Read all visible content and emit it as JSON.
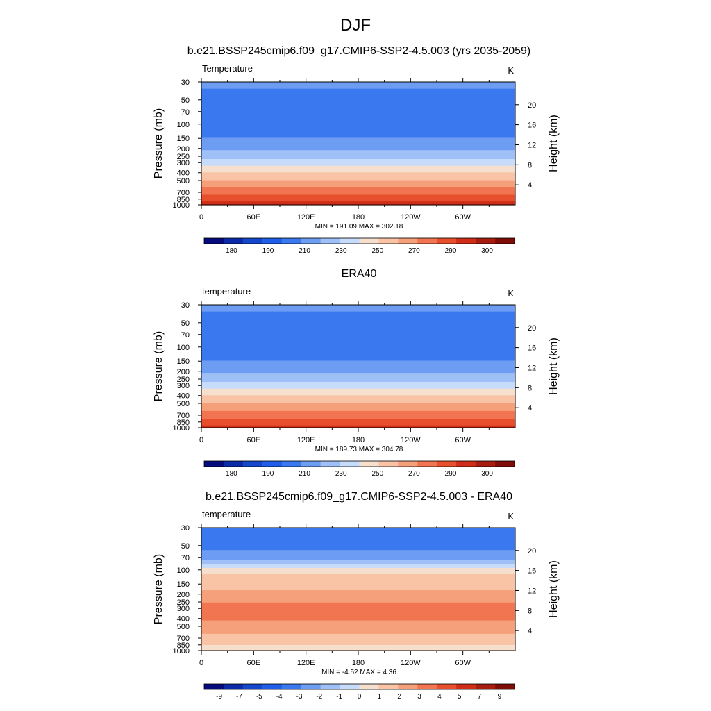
{
  "figure_title": "DJF",
  "chart_data": [
    {
      "type": "heatmap",
      "title": "b.e21.BSSP245cmip6.f09_g17.CMIP6-SSP2-4.5.003 (yrs 2035-2059)",
      "variable_label": "Temperature",
      "units_label": "K",
      "ylabel": "Pressure (mb)",
      "ylabel_right": "Height (km)",
      "x_ticks": [
        "0",
        "60E",
        "120E",
        "180",
        "120W",
        "60W"
      ],
      "x_tick_degrees": [
        0,
        60,
        120,
        180,
        240,
        300
      ],
      "xlim": [
        0,
        360
      ],
      "y_ticks": [
        30,
        50,
        70,
        100,
        150,
        200,
        250,
        300,
        400,
        500,
        700,
        850,
        1000
      ],
      "ylim": [
        30,
        1000
      ],
      "y_scale": "log",
      "y_right_ticks": [
        20,
        16,
        12,
        8,
        4
      ],
      "stats_text": "MIN = 191.09  MAX = 302.18",
      "min": 191.09,
      "max": 302.18,
      "levels": [
        175,
        180,
        185,
        190,
        200,
        210,
        220,
        230,
        240,
        250,
        260,
        270,
        280,
        290,
        295,
        300
      ],
      "colorbar_labels": [
        "180",
        "190",
        "210",
        "230",
        "250",
        "270",
        "290",
        "300"
      ],
      "colors": [
        "#050a7c",
        "#0b2aa8",
        "#1447cc",
        "#1f5ee8",
        "#3a78ef",
        "#6c9df3",
        "#9ec0f7",
        "#c7dcfb",
        "#f6dfcd",
        "#f9c3a6",
        "#f6a07b",
        "#f07550",
        "#e84f2c",
        "#cf2d17",
        "#a81c10",
        "#800c08"
      ],
      "profile": [
        {
          "p": 30,
          "v": 212
        },
        {
          "p": 40,
          "v": 209
        },
        {
          "p": 50,
          "v": 205
        },
        {
          "p": 70,
          "v": 203
        },
        {
          "p": 100,
          "v": 204
        },
        {
          "p": 130,
          "v": 206
        },
        {
          "p": 150,
          "v": 211
        },
        {
          "p": 200,
          "v": 218
        },
        {
          "p": 250,
          "v": 226
        },
        {
          "p": 300,
          "v": 235
        },
        {
          "p": 400,
          "v": 250
        },
        {
          "p": 500,
          "v": 261
        },
        {
          "p": 700,
          "v": 277
        },
        {
          "p": 850,
          "v": 286
        },
        {
          "p": 1000,
          "v": 294
        }
      ]
    },
    {
      "type": "heatmap",
      "title": "ERA40",
      "variable_label": "temperature",
      "units_label": "K",
      "ylabel": "Pressure (mb)",
      "ylabel_right": "Height (km)",
      "x_ticks": [
        "0",
        "60E",
        "120E",
        "180",
        "120W",
        "60W"
      ],
      "x_tick_degrees": [
        0,
        60,
        120,
        180,
        240,
        300
      ],
      "xlim": [
        0,
        360
      ],
      "y_ticks": [
        30,
        50,
        70,
        100,
        150,
        200,
        250,
        300,
        400,
        500,
        700,
        850,
        1000
      ],
      "ylim": [
        30,
        1000
      ],
      "y_scale": "log",
      "y_right_ticks": [
        20,
        16,
        12,
        8,
        4
      ],
      "stats_text": "MIN = 189.73  MAX = 304.78",
      "min": 189.73,
      "max": 304.78,
      "levels": [
        175,
        180,
        185,
        190,
        200,
        210,
        220,
        230,
        240,
        250,
        260,
        270,
        280,
        290,
        295,
        300
      ],
      "colorbar_labels": [
        "180",
        "190",
        "210",
        "230",
        "250",
        "270",
        "290",
        "300"
      ],
      "colors": [
        "#050a7c",
        "#0b2aa8",
        "#1447cc",
        "#1f5ee8",
        "#3a78ef",
        "#6c9df3",
        "#9ec0f7",
        "#c7dcfb",
        "#f6dfcd",
        "#f9c3a6",
        "#f6a07b",
        "#f07550",
        "#e84f2c",
        "#cf2d17",
        "#a81c10",
        "#800c08"
      ],
      "profile": [
        {
          "p": 30,
          "v": 212
        },
        {
          "p": 40,
          "v": 209
        },
        {
          "p": 50,
          "v": 205
        },
        {
          "p": 70,
          "v": 203
        },
        {
          "p": 100,
          "v": 203
        },
        {
          "p": 130,
          "v": 206
        },
        {
          "p": 150,
          "v": 211
        },
        {
          "p": 200,
          "v": 218
        },
        {
          "p": 250,
          "v": 226
        },
        {
          "p": 300,
          "v": 235
        },
        {
          "p": 400,
          "v": 250
        },
        {
          "p": 500,
          "v": 261
        },
        {
          "p": 700,
          "v": 276
        },
        {
          "p": 850,
          "v": 285
        },
        {
          "p": 1000,
          "v": 293
        }
      ]
    },
    {
      "type": "heatmap",
      "title": "b.e21.BSSP245cmip6.f09_g17.CMIP6-SSP2-4.5.003 - ERA40",
      "variable_label": "temperature",
      "units_label": "K",
      "ylabel": "Pressure (mb)",
      "ylabel_right": "Height (km)",
      "x_ticks": [
        "0",
        "60E",
        "120E",
        "180",
        "120W",
        "60W"
      ],
      "x_tick_degrees": [
        0,
        60,
        120,
        180,
        240,
        300
      ],
      "xlim": [
        0,
        360
      ],
      "y_ticks": [
        30,
        50,
        70,
        100,
        150,
        200,
        250,
        300,
        400,
        500,
        700,
        850,
        1000
      ],
      "ylim": [
        30,
        1000
      ],
      "y_scale": "log",
      "y_right_ticks": [
        20,
        16,
        12,
        8,
        4
      ],
      "stats_text": "MIN =  -4.52  MAX =   4.36",
      "min": -4.52,
      "max": 4.36,
      "levels": [
        -10,
        -9,
        -7,
        -5,
        -4,
        -3,
        -2,
        -1,
        0,
        1,
        2,
        3,
        4,
        5,
        7,
        9
      ],
      "colorbar_labels": [
        "-9",
        "-7",
        "-5",
        "-4",
        "-3",
        "-2",
        "-1",
        "0",
        "1",
        "2",
        "3",
        "4",
        "5",
        "7",
        "9"
      ],
      "colors": [
        "#050a7c",
        "#0b2aa8",
        "#1447cc",
        "#1f5ee8",
        "#3a78ef",
        "#6c9df3",
        "#9ec0f7",
        "#c7dcfb",
        "#f6dfcd",
        "#f9c3a6",
        "#f6a07b",
        "#f07550",
        "#e84f2c",
        "#cf2d17",
        "#a81c10",
        "#800c08"
      ],
      "profile": [
        {
          "p": 30,
          "v": -3.5
        },
        {
          "p": 50,
          "v": -3.3
        },
        {
          "p": 70,
          "v": -2.5
        },
        {
          "p": 85,
          "v": -1.0
        },
        {
          "p": 100,
          "v": 0.8
        },
        {
          "p": 150,
          "v": 1.6
        },
        {
          "p": 200,
          "v": 2.3
        },
        {
          "p": 250,
          "v": 3.0
        },
        {
          "p": 300,
          "v": 3.2
        },
        {
          "p": 400,
          "v": 3.1
        },
        {
          "p": 500,
          "v": 2.7
        },
        {
          "p": 700,
          "v": 1.6
        },
        {
          "p": 850,
          "v": 1.0
        },
        {
          "p": 1000,
          "v": 0.8
        }
      ]
    }
  ]
}
